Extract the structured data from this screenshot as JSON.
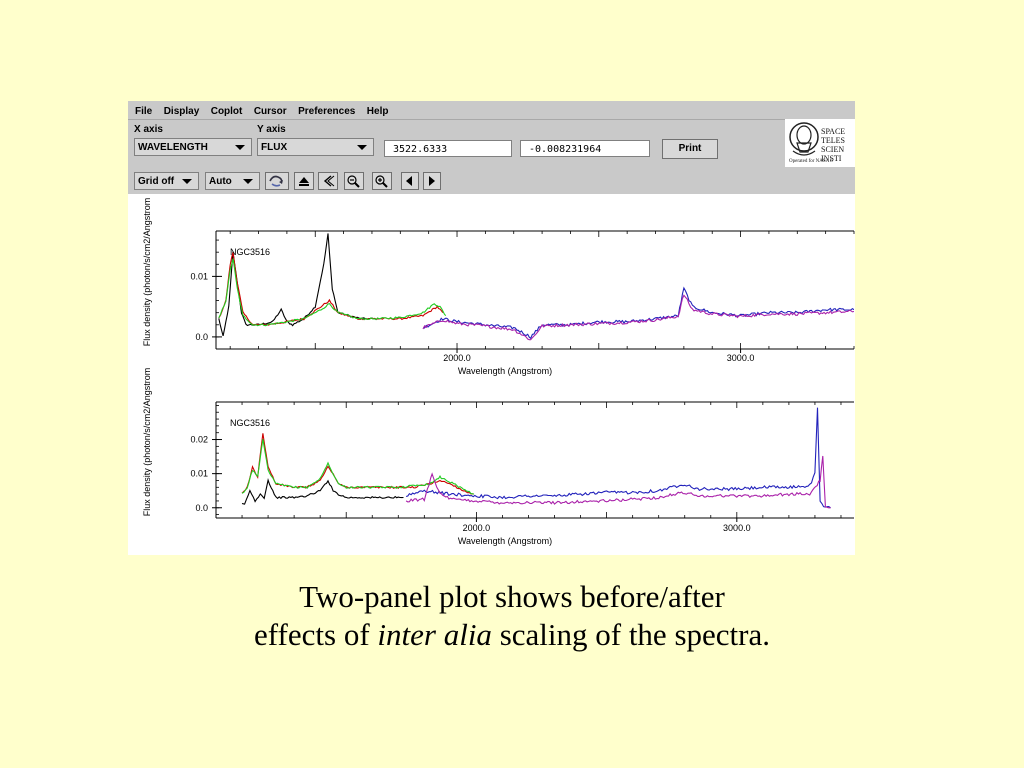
{
  "menu": [
    "File",
    "Display",
    "Coplot",
    "Cursor",
    "Preferences",
    "Help"
  ],
  "controls": {
    "x_axis_label": "X axis",
    "y_axis_label": "Y axis",
    "x_axis_value": "WAVELENGTH",
    "y_axis_value": "FLUX",
    "cursor_x": "3522.6333",
    "cursor_y": "-0.008231964",
    "print_label": "Print"
  },
  "logo": {
    "text": "SPACE\nTELES\nSCIEN\nINSTI",
    "subtext": "Operated for NASA b"
  },
  "toolbar": {
    "grid_label": "Grid off",
    "scale_label": "Auto",
    "icons": [
      "refresh-icon",
      "eject-icon",
      "back-icon",
      "zoom-out-icon",
      "zoom-in-icon",
      "left-arrow-icon",
      "right-arrow-icon"
    ]
  },
  "chart_data": [
    {
      "type": "line",
      "panel": "before",
      "annotation": "NGC3516",
      "xlabel": "Wavelength (Angstrom)",
      "ylabel": "Flux density (photon/s/cm2/Angstrom",
      "xlim": [
        1150,
        3400
      ],
      "ylim": [
        -0.002,
        0.0175
      ],
      "xticks": [
        2000.0,
        3000.0
      ],
      "xtick_labels": [
        "2000.0",
        "3000.0"
      ],
      "yticks": [
        0.0,
        0.01
      ],
      "ytick_labels": [
        "0.0",
        "0.01"
      ],
      "series": [
        {
          "color": "#000000",
          "x": [
            1160,
            1175,
            1195,
            1210,
            1225,
            1240,
            1255,
            1300,
            1350,
            1380,
            1400,
            1420,
            1460,
            1500,
            1530,
            1545,
            1560,
            1580,
            1620,
            1660,
            1700,
            1720
          ],
          "y": [
            0.003,
            0.0,
            0.005,
            0.014,
            0.009,
            0.004,
            0.002,
            0.002,
            0.0025,
            0.0045,
            0.0025,
            0.002,
            0.003,
            0.005,
            0.012,
            0.017,
            0.008,
            0.004,
            0.0035,
            0.003,
            0.003,
            0.003
          ]
        },
        {
          "color": "#cc0000",
          "x": [
            1160,
            1185,
            1200,
            1210,
            1225,
            1245,
            1280,
            1330,
            1400,
            1460,
            1520,
            1550,
            1580,
            1650,
            1720,
            1800,
            1880,
            1930,
            1950
          ],
          "y": [
            0.003,
            0.006,
            0.012,
            0.014,
            0.009,
            0.004,
            0.002,
            0.002,
            0.0025,
            0.003,
            0.005,
            0.006,
            0.004,
            0.003,
            0.003,
            0.003,
            0.0035,
            0.005,
            0.004
          ]
        },
        {
          "color": "#22cc22",
          "x": [
            1160,
            1185,
            1200,
            1210,
            1225,
            1245,
            1280,
            1330,
            1400,
            1460,
            1520,
            1550,
            1580,
            1650,
            1720,
            1800,
            1880,
            1920,
            1940,
            1960
          ],
          "y": [
            0.003,
            0.006,
            0.011,
            0.013,
            0.008,
            0.0035,
            0.002,
            0.002,
            0.0025,
            0.003,
            0.0045,
            0.0055,
            0.004,
            0.003,
            0.003,
            0.0032,
            0.004,
            0.0055,
            0.005,
            0.0035
          ]
        },
        {
          "color": "#2222bb",
          "x": [
            1880,
            1950,
            2000,
            2100,
            2200,
            2260,
            2300,
            2400,
            2500,
            2600,
            2700,
            2780,
            2800,
            2830,
            2900,
            3000,
            3100,
            3200,
            3300,
            3400
          ],
          "y": [
            0.0015,
            0.003,
            0.0025,
            0.002,
            0.0015,
            0.0,
            0.002,
            0.002,
            0.0025,
            0.0025,
            0.003,
            0.0035,
            0.008,
            0.005,
            0.004,
            0.0035,
            0.004,
            0.004,
            0.0045,
            0.0045
          ]
        },
        {
          "color": "#aa22aa",
          "x": [
            1880,
            1950,
            2000,
            2100,
            2200,
            2260,
            2300,
            2400,
            2500,
            2600,
            2700,
            2780,
            2800,
            2830,
            2900,
            3000,
            3100,
            3200,
            3300,
            3400
          ],
          "y": [
            0.0015,
            0.0028,
            0.0022,
            0.0018,
            0.0012,
            -0.0005,
            0.0018,
            0.002,
            0.0022,
            0.0024,
            0.0028,
            0.0034,
            0.007,
            0.0045,
            0.0038,
            0.0034,
            0.0038,
            0.0038,
            0.004,
            0.0042
          ]
        }
      ]
    },
    {
      "type": "line",
      "panel": "after",
      "annotation": "NGC3516",
      "xlabel": "Wavelength (Angstrom)",
      "ylabel": "Flux density (photon/s/cm2/Angstrom",
      "xlim": [
        1000,
        3450
      ],
      "ylim": [
        -0.003,
        0.031
      ],
      "xticks": [
        2000.0,
        3000.0
      ],
      "xtick_labels": [
        "2000.0",
        "3000.0"
      ],
      "yticks": [
        0.0,
        0.01,
        0.02
      ],
      "ytick_labels": [
        "0.0",
        "0.01",
        "0.02"
      ],
      "series": [
        {
          "color": "#000000",
          "x": [
            1100,
            1110,
            1130,
            1150,
            1170,
            1185,
            1200,
            1230,
            1300,
            1350,
            1400,
            1430,
            1450,
            1470,
            1500,
            1550,
            1600,
            1640,
            1700,
            1720
          ],
          "y": [
            0.001,
            0.001,
            0.005,
            0.002,
            0.004,
            0.003,
            0.008,
            0.003,
            0.003,
            0.0035,
            0.005,
            0.008,
            0.005,
            0.004,
            0.003,
            0.003,
            0.003,
            0.003,
            0.003,
            0.003
          ]
        },
        {
          "color": "#cc0000",
          "x": [
            1100,
            1120,
            1140,
            1160,
            1180,
            1200,
            1230,
            1300,
            1350,
            1400,
            1430,
            1450,
            1470,
            1500,
            1600,
            1700,
            1760,
            1820,
            1860,
            1900,
            1950,
            1990
          ],
          "y": [
            0.004,
            0.006,
            0.012,
            0.009,
            0.022,
            0.012,
            0.007,
            0.006,
            0.006,
            0.008,
            0.012,
            0.01,
            0.007,
            0.006,
            0.006,
            0.006,
            0.006,
            0.007,
            0.008,
            0.007,
            0.005,
            0.004
          ]
        },
        {
          "color": "#22cc22",
          "x": [
            1100,
            1120,
            1140,
            1160,
            1180,
            1200,
            1230,
            1300,
            1350,
            1400,
            1430,
            1450,
            1470,
            1500,
            1600,
            1700,
            1760,
            1820,
            1860,
            1900,
            1950,
            1990
          ],
          "y": [
            0.004,
            0.006,
            0.011,
            0.009,
            0.02,
            0.011,
            0.007,
            0.006,
            0.006,
            0.0085,
            0.013,
            0.01,
            0.007,
            0.006,
            0.006,
            0.006,
            0.0065,
            0.007,
            0.009,
            0.0075,
            0.0055,
            0.004
          ]
        },
        {
          "color": "#2222bb",
          "x": [
            1730,
            1800,
            1900,
            2000,
            2100,
            2200,
            2300,
            2400,
            2500,
            2600,
            2700,
            2800,
            2850,
            2900,
            3000,
            3100,
            3200,
            3280,
            3300,
            3310,
            3320,
            3340,
            3360
          ],
          "y": [
            0.0035,
            0.005,
            0.004,
            0.0035,
            0.003,
            0.0035,
            0.0035,
            0.004,
            0.0045,
            0.0045,
            0.005,
            0.007,
            0.0055,
            0.0055,
            0.0055,
            0.006,
            0.006,
            0.0065,
            0.01,
            0.029,
            0.002,
            0.0,
            0.0
          ]
        },
        {
          "color": "#aa22aa",
          "x": [
            1730,
            1800,
            1830,
            1860,
            1900,
            2000,
            2100,
            2200,
            2300,
            2400,
            2500,
            2600,
            2700,
            2800,
            2850,
            2900,
            3000,
            3100,
            3200,
            3280,
            3320,
            3330,
            3340,
            3360
          ],
          "y": [
            0.002,
            0.0025,
            0.01,
            0.004,
            0.0025,
            0.002,
            0.0015,
            0.0015,
            0.0015,
            0.0018,
            0.002,
            0.0025,
            0.003,
            0.0045,
            0.0035,
            0.0035,
            0.0035,
            0.0035,
            0.004,
            0.004,
            0.008,
            0.015,
            0.0,
            0.0
          ]
        }
      ]
    }
  ],
  "caption": {
    "line1": "Two-panel plot shows before/after",
    "line2_pre": "effects of ",
    "line2_em": "inter alia",
    "line2_post": " scaling of the spectra."
  }
}
